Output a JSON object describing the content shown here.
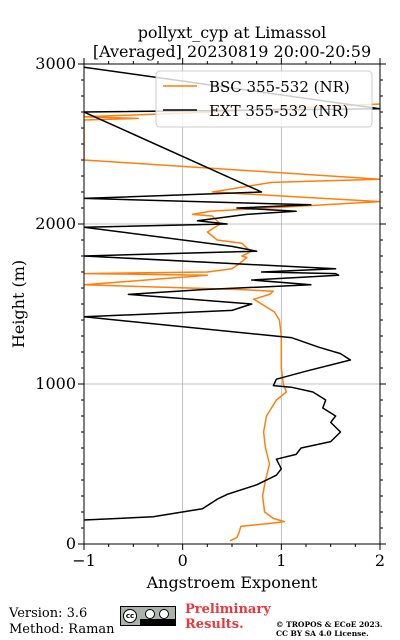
{
  "chart_data": {
    "type": "line",
    "title": "pollyxt_cyp at Limassol",
    "subtitle": "[Averaged] 20230819 20:00-20:59",
    "xlabel": "Angstroem Exponent",
    "ylabel": "Height (m)",
    "xlim": [
      -1,
      2
    ],
    "ylim": [
      0,
      3000
    ],
    "xticks": [
      "−1",
      "0",
      "1",
      "2"
    ],
    "yticks": [
      "0",
      "1000",
      "2000",
      "3000"
    ],
    "grid": true,
    "legend_position": "top-right",
    "series": [
      {
        "name": "BSC 355-532 (NR)",
        "color": "#ff7f0e",
        "points": [
          [
            0.48,
            20
          ],
          [
            0.55,
            40
          ],
          [
            0.57,
            70
          ],
          [
            0.59,
            110
          ],
          [
            0.9,
            130
          ],
          [
            1.03,
            140
          ],
          [
            0.92,
            160
          ],
          [
            0.83,
            200
          ],
          [
            0.81,
            300
          ],
          [
            0.84,
            400
          ],
          [
            0.88,
            500
          ],
          [
            0.84,
            600
          ],
          [
            0.82,
            700
          ],
          [
            0.85,
            800
          ],
          [
            0.95,
            900
          ],
          [
            1.05,
            950
          ],
          [
            1.02,
            1000
          ],
          [
            1.0,
            1100
          ],
          [
            1.0,
            1200
          ],
          [
            1.0,
            1300
          ],
          [
            0.98,
            1400
          ],
          [
            0.93,
            1450
          ],
          [
            0.8,
            1500
          ],
          [
            0.72,
            1530
          ],
          [
            0.88,
            1560
          ],
          [
            0.92,
            1580
          ],
          [
            0.6,
            1590
          ],
          [
            -1.0,
            1620
          ],
          [
            0.25,
            1680
          ],
          [
            -1.0,
            1690
          ],
          [
            0.25,
            1700
          ],
          [
            0.5,
            1720
          ],
          [
            0.57,
            1750
          ],
          [
            0.65,
            1790
          ],
          [
            0.6,
            1800
          ],
          [
            0.7,
            1830
          ],
          [
            0.65,
            1850
          ],
          [
            0.6,
            1880
          ],
          [
            0.35,
            1900
          ],
          [
            0.25,
            1950
          ],
          [
            0.38,
            2000
          ],
          [
            0.3,
            2050
          ],
          [
            0.1,
            2060
          ],
          [
            0.28,
            2080
          ],
          [
            2.0,
            2140
          ],
          [
            0.3,
            2200
          ],
          [
            0.9,
            2260
          ],
          [
            2.0,
            2280
          ],
          [
            -1.0,
            2400
          ],
          [
            -1.0,
            2650
          ],
          [
            -0.45,
            2660
          ],
          [
            -1.0,
            2670
          ],
          [
            0.3,
            2700
          ],
          [
            2.0,
            2750
          ]
        ]
      },
      {
        "name": "EXT 355-532 (NR)",
        "color": "#000000",
        "points": [
          [
            -1.0,
            150
          ],
          [
            -0.3,
            170
          ],
          [
            0.2,
            220
          ],
          [
            0.35,
            280
          ],
          [
            0.45,
            310
          ],
          [
            0.75,
            370
          ],
          [
            0.95,
            430
          ],
          [
            1.0,
            470
          ],
          [
            0.95,
            530
          ],
          [
            1.15,
            560
          ],
          [
            1.2,
            600
          ],
          [
            1.5,
            640
          ],
          [
            1.6,
            700
          ],
          [
            1.5,
            760
          ],
          [
            1.55,
            800
          ],
          [
            1.42,
            850
          ],
          [
            1.45,
            900
          ],
          [
            1.32,
            950
          ],
          [
            1.1,
            980
          ],
          [
            0.92,
            990
          ],
          [
            0.95,
            1030
          ],
          [
            1.25,
            1080
          ],
          [
            1.7,
            1150
          ],
          [
            1.6,
            1190
          ],
          [
            1.38,
            1230
          ],
          [
            1.1,
            1290
          ],
          [
            -1.0,
            1420
          ],
          [
            0.5,
            1460
          ],
          [
            0.7,
            1500
          ],
          [
            -0.55,
            1560
          ],
          [
            0.2,
            1590
          ],
          [
            1.3,
            1620
          ],
          [
            0.7,
            1650
          ],
          [
            1.58,
            1680
          ],
          [
            1.55,
            1690
          ],
          [
            0.8,
            1700
          ],
          [
            1.55,
            1720
          ],
          [
            -1.0,
            1800
          ],
          [
            0.75,
            1830
          ],
          [
            0.5,
            1860
          ],
          [
            -1.0,
            1980
          ],
          [
            0.45,
            2000
          ],
          [
            0.15,
            2020
          ],
          [
            0.65,
            2060
          ],
          [
            1.15,
            2080
          ],
          [
            0.55,
            2100
          ],
          [
            1.3,
            2120
          ],
          [
            -1.0,
            2160
          ],
          [
            0.8,
            2200
          ],
          [
            -1.0,
            2700
          ],
          [
            2.0,
            2720
          ],
          [
            -1.0,
            2980
          ]
        ]
      }
    ]
  },
  "footer": {
    "version": "Version: 3.6",
    "method": "Method: Raman",
    "license_badge": "cc-by-sa-icon",
    "preliminary_line1": "Preliminary",
    "preliminary_line2": "Results.",
    "copyright_line1": "© TROPOS & ECoE 2023.",
    "copyright_line2": "CC BY SA 4.0 License."
  }
}
